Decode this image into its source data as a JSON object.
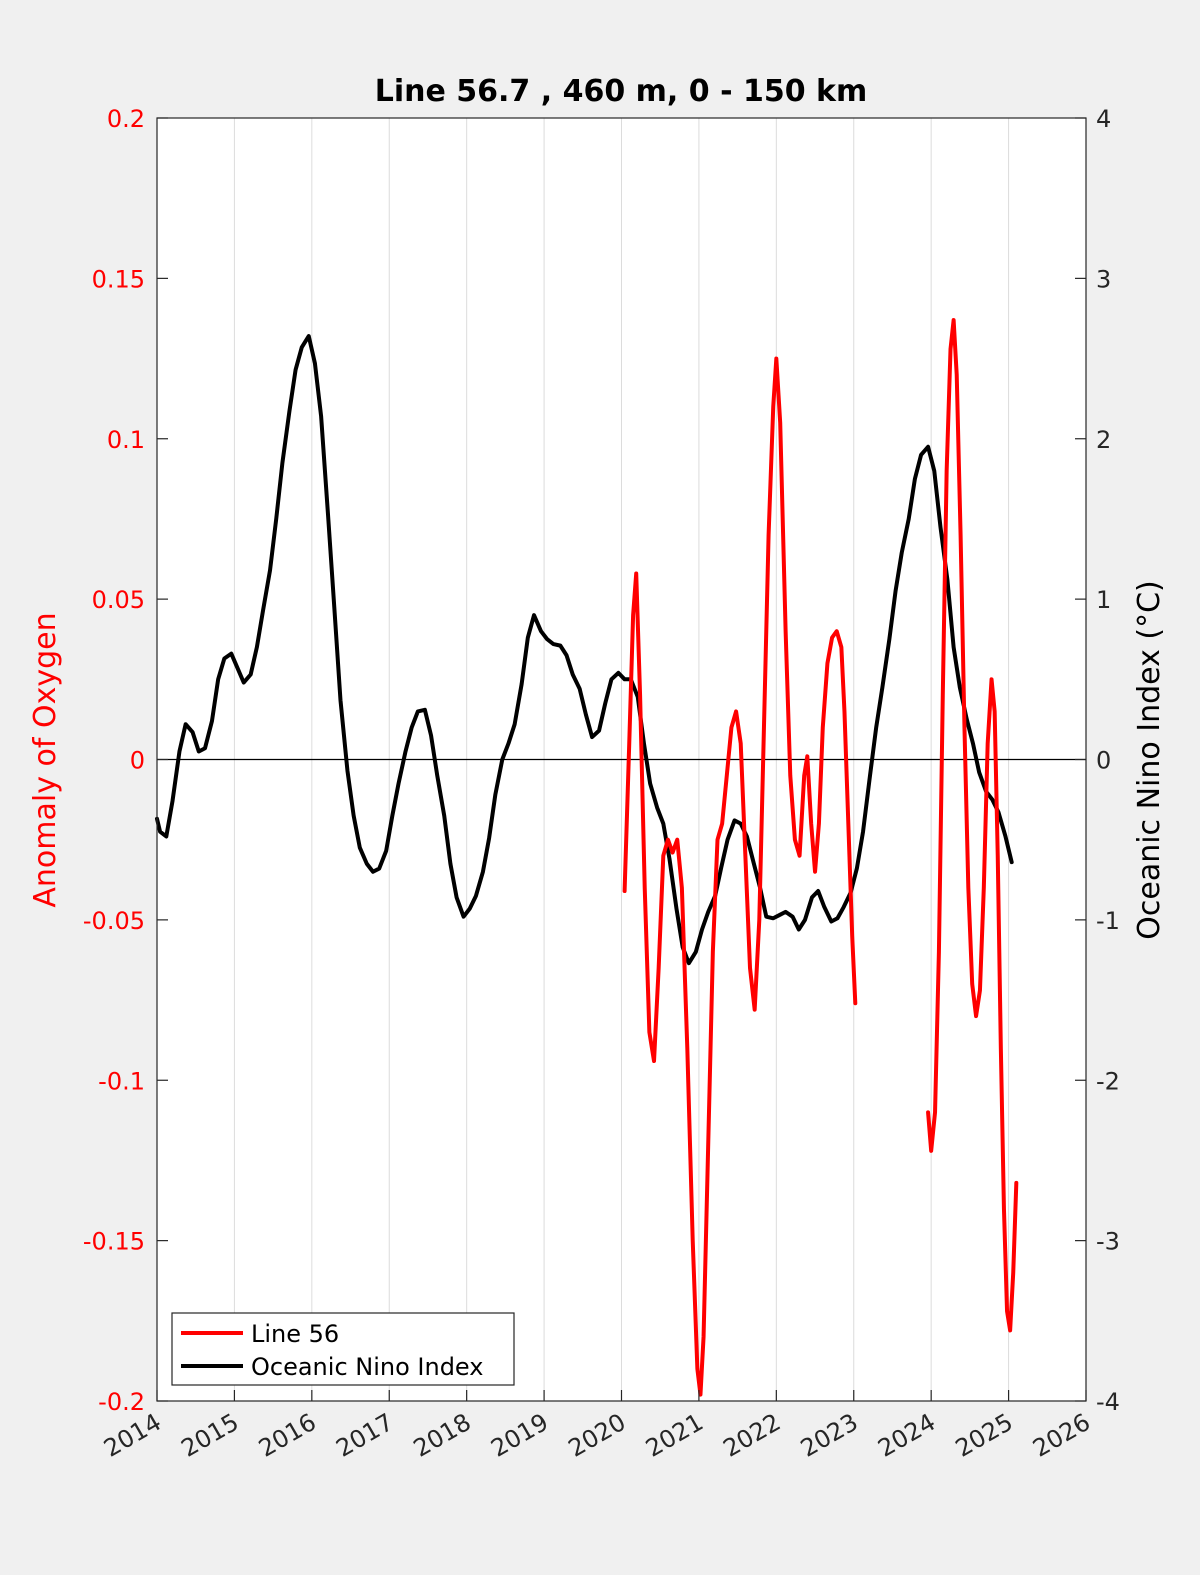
{
  "chart_data": {
    "type": "line",
    "title": "Line 56.7 , 460 m, 0 - 150 km",
    "xlabel": "",
    "ylabel_left": "Anomaly of Oxygen",
    "ylabel_right": "Oceanic Nino Index (°C)",
    "xlim": [
      2014,
      2026
    ],
    "ylim_left": [
      -0.2,
      0.2
    ],
    "ylim_right": [
      -4,
      4
    ],
    "x_ticks": [
      "2014",
      "2015",
      "2016",
      "2017",
      "2018",
      "2019",
      "2020",
      "2021",
      "2022",
      "2023",
      "2024",
      "2025",
      "2026"
    ],
    "y_left_ticks": [
      "0.2",
      "0.15",
      "0.1",
      "0.05",
      "0",
      "-0.05",
      "-0.1",
      "-0.15",
      "-0.2"
    ],
    "y_right_ticks": [
      "4",
      "3",
      "2",
      "1",
      "0",
      "-1",
      "-2",
      "-3",
      "-4"
    ],
    "grid": "vertical",
    "legend_position": "bottom-left",
    "colors": {
      "line56": "#ff0000",
      "oni": "#000000",
      "left_axis": "#ff0000"
    },
    "series": [
      {
        "name": "Line 56",
        "axis": "left",
        "segments": [
          [
            [
              2020.04,
              -0.041
            ],
            [
              2020.1,
              0.005
            ],
            [
              2020.15,
              0.045
            ],
            [
              2020.19,
              0.058
            ],
            [
              2020.24,
              0.02
            ],
            [
              2020.3,
              -0.04
            ],
            [
              2020.36,
              -0.085
            ],
            [
              2020.42,
              -0.094
            ],
            [
              2020.48,
              -0.065
            ],
            [
              2020.54,
              -0.03
            ],
            [
              2020.6,
              -0.025
            ],
            [
              2020.66,
              -0.029
            ],
            [
              2020.72,
              -0.025
            ],
            [
              2020.78,
              -0.04
            ],
            [
              2020.85,
              -0.09
            ],
            [
              2020.92,
              -0.15
            ],
            [
              2020.98,
              -0.19
            ],
            [
              2021.02,
              -0.198
            ],
            [
              2021.06,
              -0.18
            ],
            [
              2021.12,
              -0.12
            ],
            [
              2021.18,
              -0.06
            ],
            [
              2021.24,
              -0.025
            ],
            [
              2021.3,
              -0.02
            ],
            [
              2021.36,
              -0.005
            ],
            [
              2021.42,
              0.01
            ],
            [
              2021.48,
              0.015
            ],
            [
              2021.54,
              0.005
            ],
            [
              2021.6,
              -0.03
            ],
            [
              2021.66,
              -0.065
            ],
            [
              2021.72,
              -0.078
            ],
            [
              2021.78,
              -0.05
            ],
            [
              2021.84,
              0.01
            ],
            [
              2021.9,
              0.07
            ],
            [
              2021.96,
              0.11
            ],
            [
              2022.0,
              0.125
            ],
            [
              2022.05,
              0.105
            ],
            [
              2022.12,
              0.04
            ],
            [
              2022.18,
              -0.005
            ],
            [
              2022.24,
              -0.025
            ],
            [
              2022.3,
              -0.03
            ],
            [
              2022.36,
              -0.005
            ],
            [
              2022.4,
              0.001
            ],
            [
              2022.45,
              -0.02
            ],
            [
              2022.5,
              -0.035
            ],
            [
              2022.55,
              -0.02
            ],
            [
              2022.6,
              0.01
            ],
            [
              2022.66,
              0.03
            ],
            [
              2022.72,
              0.038
            ],
            [
              2022.78,
              0.04
            ],
            [
              2022.84,
              0.035
            ],
            [
              2022.88,
              0.015
            ],
            [
              2022.93,
              -0.02
            ],
            [
              2022.98,
              -0.055
            ],
            [
              2023.02,
              -0.076
            ]
          ],
          [
            [
              2023.96,
              -0.11
            ],
            [
              2024.0,
              -0.122
            ],
            [
              2024.05,
              -0.11
            ],
            [
              2024.1,
              -0.06
            ],
            [
              2024.15,
              0.02
            ],
            [
              2024.2,
              0.09
            ],
            [
              2024.25,
              0.128
            ],
            [
              2024.29,
              0.137
            ],
            [
              2024.33,
              0.12
            ],
            [
              2024.38,
              0.07
            ],
            [
              2024.43,
              0.01
            ],
            [
              2024.48,
              -0.04
            ],
            [
              2024.53,
              -0.07
            ],
            [
              2024.58,
              -0.08
            ],
            [
              2024.63,
              -0.072
            ],
            [
              2024.68,
              -0.04
            ],
            [
              2024.73,
              0.005
            ],
            [
              2024.78,
              0.025
            ],
            [
              2024.82,
              0.015
            ],
            [
              2024.86,
              -0.03
            ],
            [
              2024.9,
              -0.09
            ],
            [
              2024.94,
              -0.14
            ],
            [
              2024.98,
              -0.172
            ],
            [
              2025.02,
              -0.178
            ],
            [
              2025.06,
              -0.16
            ],
            [
              2025.1,
              -0.132
            ]
          ]
        ]
      },
      {
        "name": "Oceanic Nino Index",
        "axis": "right",
        "segments": [
          [
            [
              2014.0,
              -0.37
            ],
            [
              2014.04,
              -0.45
            ],
            [
              2014.12,
              -0.48
            ],
            [
              2014.2,
              -0.26
            ],
            [
              2014.29,
              0.05
            ],
            [
              2014.37,
              0.22
            ],
            [
              2014.46,
              0.17
            ],
            [
              2014.54,
              0.05
            ],
            [
              2014.62,
              0.07
            ],
            [
              2014.71,
              0.24
            ],
            [
              2014.79,
              0.5
            ],
            [
              2014.87,
              0.63
            ],
            [
              2014.96,
              0.66
            ],
            [
              2015.04,
              0.57
            ],
            [
              2015.12,
              0.48
            ],
            [
              2015.21,
              0.53
            ],
            [
              2015.29,
              0.7
            ],
            [
              2015.37,
              0.93
            ],
            [
              2015.46,
              1.18
            ],
            [
              2015.54,
              1.5
            ],
            [
              2015.62,
              1.85
            ],
            [
              2015.71,
              2.17
            ],
            [
              2015.79,
              2.43
            ],
            [
              2015.87,
              2.57
            ],
            [
              2015.96,
              2.64
            ],
            [
              2016.04,
              2.47
            ],
            [
              2016.12,
              2.14
            ],
            [
              2016.21,
              1.52
            ],
            [
              2016.29,
              0.95
            ],
            [
              2016.37,
              0.37
            ],
            [
              2016.46,
              -0.07
            ],
            [
              2016.54,
              -0.35
            ],
            [
              2016.62,
              -0.55
            ],
            [
              2016.71,
              -0.65
            ],
            [
              2016.79,
              -0.7
            ],
            [
              2016.87,
              -0.68
            ],
            [
              2016.96,
              -0.57
            ],
            [
              2017.04,
              -0.35
            ],
            [
              2017.12,
              -0.15
            ],
            [
              2017.21,
              0.05
            ],
            [
              2017.29,
              0.2
            ],
            [
              2017.37,
              0.3
            ],
            [
              2017.46,
              0.31
            ],
            [
              2017.54,
              0.15
            ],
            [
              2017.62,
              -0.1
            ],
            [
              2017.71,
              -0.35
            ],
            [
              2017.79,
              -0.65
            ],
            [
              2017.87,
              -0.86
            ],
            [
              2017.96,
              -0.98
            ],
            [
              2018.04,
              -0.93
            ],
            [
              2018.12,
              -0.85
            ],
            [
              2018.21,
              -0.7
            ],
            [
              2018.29,
              -0.49
            ],
            [
              2018.37,
              -0.22
            ],
            [
              2018.46,
              0.0
            ],
            [
              2018.54,
              0.1
            ],
            [
              2018.62,
              0.22
            ],
            [
              2018.71,
              0.47
            ],
            [
              2018.79,
              0.76
            ],
            [
              2018.87,
              0.9
            ],
            [
              2018.96,
              0.8
            ],
            [
              2019.04,
              0.75
            ],
            [
              2019.12,
              0.72
            ],
            [
              2019.21,
              0.71
            ],
            [
              2019.29,
              0.65
            ],
            [
              2019.37,
              0.53
            ],
            [
              2019.46,
              0.44
            ],
            [
              2019.54,
              0.28
            ],
            [
              2019.62,
              0.14
            ],
            [
              2019.71,
              0.18
            ],
            [
              2019.79,
              0.35
            ],
            [
              2019.87,
              0.5
            ],
            [
              2019.96,
              0.54
            ],
            [
              2020.04,
              0.5
            ],
            [
              2020.12,
              0.5
            ],
            [
              2020.21,
              0.39
            ],
            [
              2020.29,
              0.1
            ],
            [
              2020.37,
              -0.15
            ],
            [
              2020.46,
              -0.3
            ],
            [
              2020.54,
              -0.4
            ],
            [
              2020.62,
              -0.62
            ],
            [
              2020.71,
              -0.93
            ],
            [
              2020.79,
              -1.17
            ],
            [
              2020.87,
              -1.27
            ],
            [
              2020.96,
              -1.2
            ],
            [
              2021.04,
              -1.06
            ],
            [
              2021.12,
              -0.95
            ],
            [
              2021.21,
              -0.85
            ],
            [
              2021.29,
              -0.67
            ],
            [
              2021.37,
              -0.5
            ],
            [
              2021.46,
              -0.38
            ],
            [
              2021.54,
              -0.4
            ],
            [
              2021.62,
              -0.48
            ],
            [
              2021.71,
              -0.65
            ],
            [
              2021.79,
              -0.8
            ],
            [
              2021.87,
              -0.98
            ],
            [
              2021.96,
              -0.99
            ],
            [
              2022.04,
              -0.97
            ],
            [
              2022.12,
              -0.95
            ],
            [
              2022.21,
              -0.98
            ],
            [
              2022.29,
              -1.06
            ],
            [
              2022.37,
              -1.0
            ],
            [
              2022.46,
              -0.86
            ],
            [
              2022.54,
              -0.82
            ],
            [
              2022.62,
              -0.92
            ],
            [
              2022.71,
              -1.01
            ],
            [
              2022.79,
              -0.99
            ],
            [
              2022.87,
              -0.92
            ],
            [
              2022.96,
              -0.83
            ],
            [
              2023.04,
              -0.68
            ],
            [
              2023.12,
              -0.45
            ],
            [
              2023.21,
              -0.1
            ],
            [
              2023.29,
              0.2
            ],
            [
              2023.37,
              0.45
            ],
            [
              2023.46,
              0.75
            ],
            [
              2023.54,
              1.05
            ],
            [
              2023.62,
              1.29
            ],
            [
              2023.71,
              1.5
            ],
            [
              2023.79,
              1.75
            ],
            [
              2023.87,
              1.9
            ],
            [
              2023.96,
              1.95
            ],
            [
              2024.04,
              1.8
            ],
            [
              2024.12,
              1.45
            ],
            [
              2024.21,
              1.12
            ],
            [
              2024.29,
              0.7
            ],
            [
              2024.37,
              0.45
            ],
            [
              2024.46,
              0.25
            ],
            [
              2024.54,
              0.1
            ],
            [
              2024.62,
              -0.08
            ],
            [
              2024.71,
              -0.2
            ],
            [
              2024.79,
              -0.25
            ],
            [
              2024.87,
              -0.33
            ],
            [
              2024.96,
              -0.48
            ],
            [
              2025.04,
              -0.64
            ]
          ]
        ]
      }
    ]
  }
}
